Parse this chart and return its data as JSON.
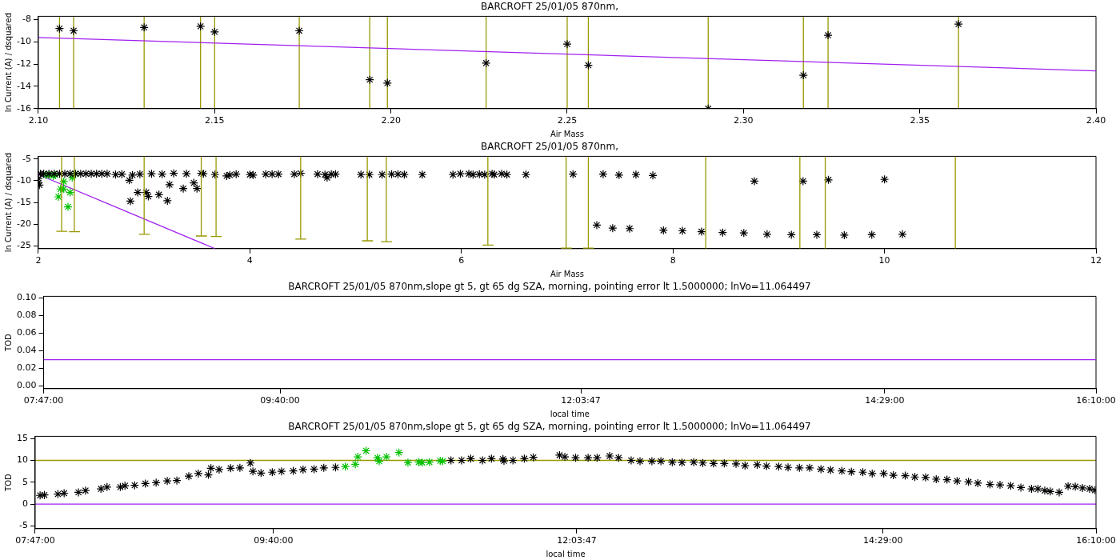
{
  "chart_data": [
    {
      "type": "scatter",
      "title": "BARCROFT 25/01/05 870nm,",
      "xlabel": "Air Mass",
      "ylabel": "ln Current (A) / dsquared",
      "xlim": [
        2.1,
        2.4
      ],
      "xticks": [
        {
          "value": 2.1,
          "label": "2.10"
        },
        {
          "value": 2.15,
          "label": "2.15"
        },
        {
          "value": 2.2,
          "label": "2.20"
        },
        {
          "value": 2.25,
          "label": "2.25"
        },
        {
          "value": 2.3,
          "label": "2.30"
        },
        {
          "value": 2.35,
          "label": "2.35"
        },
        {
          "value": 2.4,
          "label": "2.40"
        }
      ],
      "ylim": [
        -16,
        -7.7
      ],
      "yticks": [
        -16,
        -14,
        -12,
        -10,
        -8
      ],
      "grid": false,
      "legend": false,
      "marker": "cross",
      "ref_lines": [
        {
          "axis": "x",
          "value": 2.106,
          "color": "#999900"
        },
        {
          "axis": "x",
          "value": 2.11,
          "color": "#999900"
        },
        {
          "axis": "x",
          "value": 2.13,
          "color": "#999900"
        },
        {
          "axis": "x",
          "value": 2.146,
          "color": "#999900"
        },
        {
          "axis": "x",
          "value": 2.15,
          "color": "#999900"
        },
        {
          "axis": "x",
          "value": 2.174,
          "color": "#999900"
        },
        {
          "axis": "x",
          "value": 2.194,
          "color": "#999900"
        },
        {
          "axis": "x",
          "value": 2.199,
          "color": "#999900"
        },
        {
          "axis": "x",
          "value": 2.227,
          "color": "#999900"
        },
        {
          "axis": "x",
          "value": 2.25,
          "color": "#999900"
        },
        {
          "axis": "x",
          "value": 2.256,
          "color": "#999900"
        },
        {
          "axis": "x",
          "value": 2.29,
          "color": "#999900"
        },
        {
          "axis": "x",
          "value": 2.317,
          "color": "#999900"
        },
        {
          "axis": "x",
          "value": 2.324,
          "color": "#999900"
        },
        {
          "axis": "x",
          "value": 2.361,
          "color": "#999900"
        }
      ],
      "series": [
        {
          "type": "scatter",
          "color": "#000000",
          "x": [
            2.106,
            2.11,
            2.13,
            2.146,
            2.15,
            2.174,
            2.194,
            2.199,
            2.227,
            2.25,
            2.256,
            2.29,
            2.317,
            2.324,
            2.361
          ],
          "values": [
            -8.8,
            -9.0,
            -8.7,
            -8.6,
            -9.1,
            -9.0,
            -13.4,
            -13.7,
            -11.9,
            -10.2,
            -12.1,
            -16.0,
            -13.0,
            -9.4,
            -8.4
          ]
        },
        {
          "type": "line",
          "marker": "none",
          "color": "#a020f0",
          "x": [
            2.1,
            2.4
          ],
          "values": [
            -9.6,
            -12.6
          ]
        }
      ]
    },
    {
      "type": "scatter",
      "title": "BARCROFT 25/01/05 870nm,",
      "xlabel": "Air Mass",
      "ylabel": "ln Current (A) / dsquared",
      "xlim": [
        2,
        12
      ],
      "xticks": [
        2,
        4,
        6,
        8,
        10,
        12
      ],
      "ylim": [
        -25.6,
        -4.4
      ],
      "yticks": [
        -25,
        -20,
        -15,
        -10,
        -5
      ],
      "grid": false,
      "legend": false,
      "marker": "cross",
      "series": [
        {
          "type": "line",
          "marker": "none",
          "color": "#999900",
          "x": [
            2.17,
            2.27,
            2.22,
            2.22
          ],
          "values": [
            -21.6,
            -21.6,
            -21.6,
            -4.4
          ]
        },
        {
          "type": "line",
          "marker": "none",
          "color": "#999900",
          "x": [
            2.29,
            2.39,
            2.34,
            2.34
          ],
          "values": [
            -21.7,
            -21.7,
            -21.7,
            -4.4
          ]
        },
        {
          "type": "line",
          "marker": "none",
          "color": "#999900",
          "x": [
            2.95,
            3.05,
            3.0,
            3.0
          ],
          "values": [
            -22.3,
            -22.3,
            -22.3,
            -4.4
          ]
        },
        {
          "type": "line",
          "marker": "none",
          "color": "#999900",
          "x": [
            3.49,
            3.59,
            3.54,
            3.54
          ],
          "values": [
            -22.7,
            -22.7,
            -22.7,
            -4.4
          ]
        },
        {
          "type": "line",
          "marker": "none",
          "color": "#999900",
          "x": [
            3.63,
            3.73,
            3.68,
            3.68
          ],
          "values": [
            -22.8,
            -22.8,
            -22.8,
            -4.4
          ]
        },
        {
          "type": "line",
          "marker": "none",
          "color": "#999900",
          "x": [
            4.43,
            4.53,
            4.48,
            4.48
          ],
          "values": [
            -23.4,
            -23.4,
            -23.4,
            -4.4
          ]
        },
        {
          "type": "line",
          "marker": "none",
          "color": "#999900",
          "x": [
            5.06,
            5.16,
            5.11,
            5.11
          ],
          "values": [
            -23.8,
            -23.8,
            -23.8,
            -4.4
          ]
        },
        {
          "type": "line",
          "marker": "none",
          "color": "#999900",
          "x": [
            5.24,
            5.34,
            5.29,
            5.29
          ],
          "values": [
            -24.0,
            -24.0,
            -24.0,
            -4.4
          ]
        },
        {
          "type": "line",
          "marker": "none",
          "color": "#999900",
          "x": [
            6.2,
            6.3,
            6.25,
            6.25
          ],
          "values": [
            -24.8,
            -24.8,
            -24.8,
            -4.4
          ]
        },
        {
          "type": "line",
          "marker": "none",
          "color": "#999900",
          "x": [
            6.94,
            7.04,
            6.99,
            6.99
          ],
          "values": [
            -25.5,
            -25.5,
            -25.5,
            -4.4
          ]
        },
        {
          "type": "line",
          "marker": "none",
          "color": "#999900",
          "x": [
            7.15,
            7.25,
            7.2,
            7.2
          ],
          "values": [
            -25.5,
            -25.5,
            -25.5,
            -4.4
          ]
        },
        {
          "type": "line",
          "marker": "none",
          "color": "#999900",
          "x": [
            8.31,
            8.31
          ],
          "values": [
            -25.6,
            -4.4
          ]
        },
        {
          "type": "line",
          "marker": "none",
          "color": "#999900",
          "x": [
            9.2,
            9.2
          ],
          "values": [
            -25.6,
            -4.4
          ]
        },
        {
          "type": "line",
          "marker": "none",
          "color": "#999900",
          "x": [
            9.44,
            9.44
          ],
          "values": [
            -25.6,
            -4.4
          ]
        },
        {
          "type": "line",
          "marker": "none",
          "color": "#999900",
          "x": [
            10.67,
            10.67
          ],
          "values": [
            -25.6,
            -4.4
          ]
        },
        {
          "type": "scatter",
          "color": "#000000",
          "x": [
            2.0,
            2.0,
            2.01,
            2.02,
            2.05,
            2.1,
            2.15,
            2.2,
            2.25,
            2.3,
            2.35,
            2.4,
            2.45,
            2.5,
            2.55,
            2.6,
            2.65,
            2.73,
            2.79,
            2.86,
            2.87,
            2.89,
            2.94,
            2.96,
            3.02,
            3.04,
            3.07,
            3.14,
            3.17,
            3.22,
            3.24,
            3.28,
            3.37,
            3.4,
            3.47,
            3.5,
            3.54,
            3.56,
            3.67,
            3.78,
            3.81,
            3.87,
            4.0,
            4.03,
            4.15,
            4.21,
            4.27,
            4.42,
            4.48,
            4.64,
            4.71,
            4.73,
            4.77,
            4.81,
            5.05,
            5.13,
            5.25,
            5.34,
            5.4,
            5.46,
            5.63,
            5.92,
            5.99,
            6.07,
            6.11,
            6.17,
            6.22,
            6.29,
            6.31,
            6.38,
            6.43,
            6.61,
            7.055,
            7.34,
            7.49,
            7.65,
            7.81,
            8.77,
            9.23,
            9.47,
            10.0,
            7.28,
            7.43,
            7.59,
            7.91,
            8.09,
            8.27,
            8.47,
            8.67,
            8.89,
            9.12,
            9.36,
            9.62,
            9.88,
            10.17
          ],
          "values": [
            -9.5,
            -10.5,
            -11.0,
            -8.4,
            -8.4,
            -8.4,
            -8.4,
            -8.4,
            -8.4,
            -8.4,
            -8.4,
            -8.4,
            -8.4,
            -8.4,
            -8.4,
            -8.4,
            -8.4,
            -8.6,
            -8.5,
            -9.9,
            -14.7,
            -8.7,
            -12.7,
            -8.5,
            -12.7,
            -13.6,
            -8.4,
            -13.2,
            -8.5,
            -14.6,
            -10.9,
            -8.3,
            -11.8,
            -8.4,
            -10.5,
            -11.8,
            -8.3,
            -8.4,
            -8.6,
            -8.9,
            -8.7,
            -8.5,
            -8.6,
            -8.7,
            -8.5,
            -8.5,
            -8.5,
            -8.5,
            -8.3,
            -8.5,
            -8.6,
            -9.3,
            -8.5,
            -8.5,
            -8.6,
            -8.6,
            -8.6,
            -8.5,
            -8.5,
            -8.6,
            -8.6,
            -8.6,
            -8.4,
            -8.4,
            -8.6,
            -8.5,
            -8.6,
            -8.4,
            -8.6,
            -8.4,
            -8.6,
            -8.6,
            -8.5,
            -8.5,
            -8.7,
            -8.6,
            -8.8,
            -10.1,
            -10.1,
            -9.8,
            -9.7,
            -20.2,
            -20.9,
            -21.0,
            -21.4,
            -21.5,
            -21.7,
            -21.9,
            -22.0,
            -22.3,
            -22.4,
            -22.4,
            -22.5,
            -22.4,
            -22.3
          ]
        },
        {
          "type": "scatter",
          "color": "#00c000",
          "x": [
            2.07,
            2.1,
            2.14,
            2.16,
            2.19,
            2.21,
            2.24,
            2.24,
            2.28,
            2.3,
            2.32,
            2.35
          ],
          "values": [
            -8.7,
            -8.7,
            -8.9,
            -8.7,
            -13.7,
            -11.9,
            -10.2,
            -11.9,
            -16.0,
            -12.7,
            -9.3,
            -8.4
          ]
        },
        {
          "type": "line",
          "marker": "none",
          "color": "#a020f0",
          "x": [
            2.0,
            3.67
          ],
          "values": [
            -8.6,
            -25.6
          ]
        }
      ]
    },
    {
      "type": "line",
      "title": "BARCROFT 25/01/05 870nm,slope gt 5, gt 65 dg SZA, morning, pointing error lt 1.5000000; lnVo=11.064497",
      "xlabel": "local time",
      "ylabel": "TOD",
      "xlim": [
        7.7833,
        16.1667
      ],
      "xticks": [
        {
          "value": 7.7833,
          "label": "07:47:00"
        },
        {
          "value": 9.6667,
          "label": "09:40:00"
        },
        {
          "value": 12.0631,
          "label": "12:03:47"
        },
        {
          "value": 14.4833,
          "label": "14:29:00"
        },
        {
          "value": 16.1667,
          "label": "16:10:00"
        }
      ],
      "ylim": [
        -0.003,
        0.102
      ],
      "yticks": [
        {
          "value": 0,
          "label": "0.00"
        },
        {
          "value": 0.02,
          "label": "0.02"
        },
        {
          "value": 0.04,
          "label": "0.04"
        },
        {
          "value": 0.06,
          "label": "0.06"
        },
        {
          "value": 0.08,
          "label": "0.08"
        },
        {
          "value": 0.1,
          "label": "0.10"
        }
      ],
      "grid": false,
      "legend": false,
      "marker": "none",
      "series": [
        {
          "type": "line",
          "color": "#a020f0",
          "x": [
            7.7833,
            16.1667
          ],
          "values": [
            0.03,
            0.03
          ]
        }
      ]
    },
    {
      "type": "scatter",
      "title": "BARCROFT 25/01/05 870nm,slope gt 5, gt 65 dg SZA, morning, pointing error lt 1.5000000; lnVo=11.064497",
      "xlabel": "local time",
      "ylabel": "TOD",
      "xlim": [
        7.7833,
        16.1667
      ],
      "xticks": [
        {
          "value": 7.7833,
          "label": "07:47:00"
        },
        {
          "value": 9.6667,
          "label": "09:40:00"
        },
        {
          "value": 12.0631,
          "label": "12:03:47"
        },
        {
          "value": 14.4833,
          "label": "14:29:00"
        },
        {
          "value": 16.1667,
          "label": "16:10:00"
        }
      ],
      "ylim": [
        -5.6,
        15.5
      ],
      "yticks": [
        -5,
        0,
        5,
        10,
        15
      ],
      "grid": false,
      "legend": false,
      "marker": "cross",
      "ref_lines": [
        {
          "axis": "y",
          "value": 10,
          "color": "#999900"
        },
        {
          "axis": "y",
          "value": 0,
          "color": "#a020f0"
        }
      ],
      "series": [
        {
          "type": "scatter",
          "color": "#000000",
          "x": [
            7.822,
            7.856,
            7.963,
            8.012,
            8.125,
            8.181,
            8.303,
            8.351,
            8.456,
            8.493,
            8.569,
            8.654,
            8.739,
            8.827,
            8.903,
            8.997,
            9.073,
            9.152,
            9.172,
            9.237,
            9.328,
            9.401,
            9.484,
            9.504,
            9.568,
            9.657,
            9.73,
            9.823,
            9.9,
            9.987,
            10.064,
            10.157,
            11.069,
            11.153,
            11.225,
            11.318,
            11.389,
            11.48,
            11.488,
            11.559,
            11.649,
            11.72,
            11.927,
            11.969,
            12.054,
            12.153,
            12.224,
            12.323,
            12.394,
            12.493,
            12.563,
            12.657,
            12.728,
            12.818,
            12.895,
            12.988,
            13.059,
            13.144,
            13.229,
            13.322,
            13.393,
            13.489,
            13.563,
            13.659,
            13.733,
            13.823,
            13.903,
            13.993,
            14.069,
            14.158,
            14.234,
            14.324,
            14.398,
            14.489,
            14.565,
            14.659,
            14.735,
            14.82,
            14.904,
            14.989,
            15.069,
            15.159,
            15.233,
            15.329,
            15.408,
            15.493,
            15.573,
            15.657,
            15.708,
            15.762,
            15.805,
            15.876,
            15.946,
            16.003,
            16.06,
            16.116,
            16.159
          ],
          "values": [
            2.0,
            2.1,
            2.3,
            2.5,
            2.7,
            3.1,
            3.5,
            3.9,
            3.9,
            4.2,
            4.3,
            4.7,
            4.9,
            5.3,
            5.4,
            6.4,
            7.0,
            6.7,
            8.2,
            7.9,
            8.2,
            8.3,
            9.4,
            7.5,
            7.1,
            7.3,
            7.5,
            7.6,
            7.9,
            8.0,
            8.3,
            8.4,
            10.0,
            10.0,
            10.4,
            10.0,
            10.4,
            10.3,
            9.9,
            10.0,
            10.4,
            10.7,
            11.2,
            10.8,
            10.6,
            10.6,
            10.6,
            11.0,
            10.6,
            10.0,
            9.8,
            9.8,
            9.8,
            9.6,
            9.5,
            9.6,
            9.4,
            9.3,
            9.3,
            9.2,
            8.8,
            9.0,
            8.7,
            8.6,
            8.4,
            8.3,
            8.3,
            8.0,
            7.8,
            7.6,
            7.4,
            7.3,
            7.0,
            7.0,
            6.6,
            6.5,
            6.2,
            6.1,
            5.7,
            5.6,
            5.3,
            5.1,
            4.8,
            4.5,
            4.4,
            4.2,
            3.8,
            3.5,
            3.5,
            3.1,
            2.9,
            2.7,
            4.1,
            4.0,
            3.7,
            3.5,
            3.2
          ]
        },
        {
          "type": "scatter",
          "color": "#00c000",
          "x": [
            10.234,
            10.313,
            10.333,
            10.398,
            10.488,
            10.502,
            10.559,
            10.658,
            10.729,
            10.814,
            10.842,
            10.899,
            10.984,
            11.004
          ],
          "values": [
            8.6,
            9.1,
            10.8,
            12.2,
            10.6,
            9.8,
            10.8,
            11.8,
            9.5,
            9.6,
            9.5,
            9.6,
            9.9,
            9.8
          ]
        }
      ]
    }
  ]
}
